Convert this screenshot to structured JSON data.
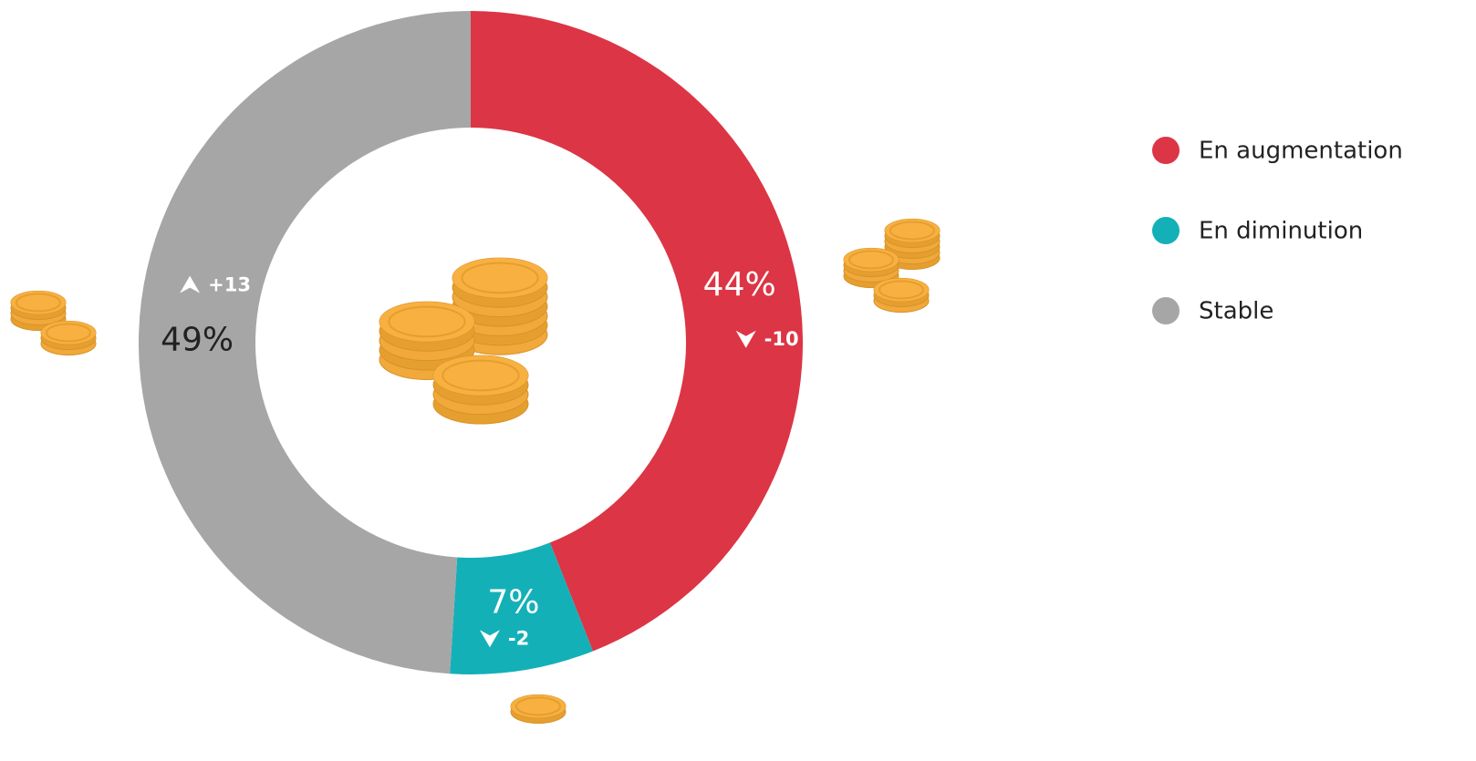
{
  "chart_data": {
    "type": "donut",
    "categories": [
      "En augmentation",
      "En diminution",
      "Stable"
    ],
    "values": [
      44,
      7,
      49
    ],
    "value_labels": [
      "44%",
      "7%",
      "49%"
    ],
    "changes": [
      -10,
      -2,
      13
    ],
    "change_labels": [
      "-10",
      "-2",
      "+13"
    ],
    "colors": [
      "#dc3545",
      "#14b0b8",
      "#a6a6a6"
    ],
    "legend": "right"
  }
}
